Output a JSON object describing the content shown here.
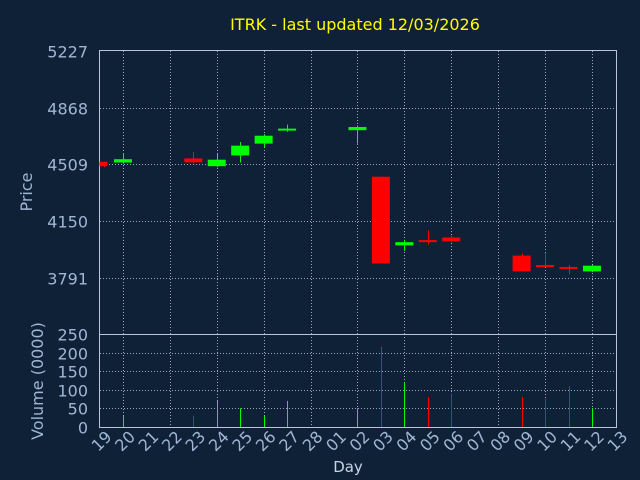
{
  "chart_data": {
    "type": "candlestick",
    "title": "ITRK - last updated 12/03/2026",
    "xlabel": "Day",
    "price_panel": {
      "ylabel": "Price",
      "yticks": [
        3791,
        4150,
        4509,
        4868,
        5227
      ],
      "ylim": [
        3433,
        5227
      ],
      "grid": true
    },
    "volume_panel": {
      "ylabel": "Volume (0000)",
      "yticks": [
        0,
        50,
        100,
        150,
        200,
        250
      ],
      "ylim": [
        0,
        250
      ],
      "grid": true
    },
    "x_tick_labels": [
      "19",
      "20",
      "21",
      "22",
      "23",
      "24",
      "25",
      "26",
      "27",
      "28",
      "01",
      "02",
      "03",
      "04",
      "05",
      "06",
      "07",
      "08",
      "09",
      "10",
      "11",
      "12",
      "13"
    ],
    "grid_tick_indices": [
      1,
      3,
      5,
      7,
      9,
      11,
      13,
      15,
      17,
      19,
      21
    ],
    "candles": [
      {
        "i": 0,
        "open": 4525,
        "close": 4496,
        "high": 4525,
        "low": 4490,
        "volume": 0
      },
      {
        "i": 1,
        "open": 4520,
        "close": 4541,
        "high": 4580,
        "low": 4512,
        "volume": 30
      },
      {
        "i": 4,
        "open": 4546,
        "close": 4521,
        "high": 4588,
        "low": 4515,
        "volume": 30
      },
      {
        "i": 5,
        "open": 4497,
        "close": 4538,
        "high": 4580,
        "low": 4490,
        "volume": 70
      },
      {
        "i": 6,
        "open": 4565,
        "close": 4627,
        "high": 4650,
        "low": 4520,
        "volume": 50
      },
      {
        "i": 7,
        "open": 4640,
        "close": 4690,
        "high": 4700,
        "low": 4615,
        "volume": 30
      },
      {
        "i": 8,
        "open": 4726,
        "close": 4735,
        "high": 4760,
        "low": 4715,
        "volume": 70
      },
      {
        "i": 11,
        "open": 4725,
        "close": 4745,
        "high": 4755,
        "low": 4640,
        "volume": 50
      },
      {
        "i": 12,
        "open": 4430,
        "close": 3880,
        "high": 4430,
        "low": 3880,
        "volume": 215
      },
      {
        "i": 13,
        "open": 3995,
        "close": 4015,
        "high": 4030,
        "low": 3960,
        "volume": 120
      },
      {
        "i": 14,
        "open": 4028,
        "close": 4024,
        "high": 4090,
        "low": 4000,
        "volume": 80
      },
      {
        "i": 15,
        "open": 4045,
        "close": 4020,
        "high": 4055,
        "low": 4015,
        "volume": 90
      },
      {
        "i": 18,
        "open": 3930,
        "close": 3830,
        "high": 3945,
        "low": 3830,
        "volume": 80
      },
      {
        "i": 19,
        "open": 3870,
        "close": 3865,
        "high": 3945,
        "low": 3860,
        "volume": 75
      },
      {
        "i": 20,
        "open": 3858,
        "close": 3848,
        "high": 3870,
        "low": 3810,
        "volume": 110
      },
      {
        "i": 21,
        "open": 3830,
        "close": 3866,
        "high": 3870,
        "low": 3825,
        "volume": 50
      }
    ],
    "colors": {
      "background": "#0f2136",
      "up": "#00ff00",
      "down": "#ff0000",
      "frame": "#b8c6d8",
      "grid": "#9aa8bc",
      "title": "#ffff00",
      "axis_text": "#9fb7d4",
      "xlabel": "#c8d4e4"
    }
  }
}
